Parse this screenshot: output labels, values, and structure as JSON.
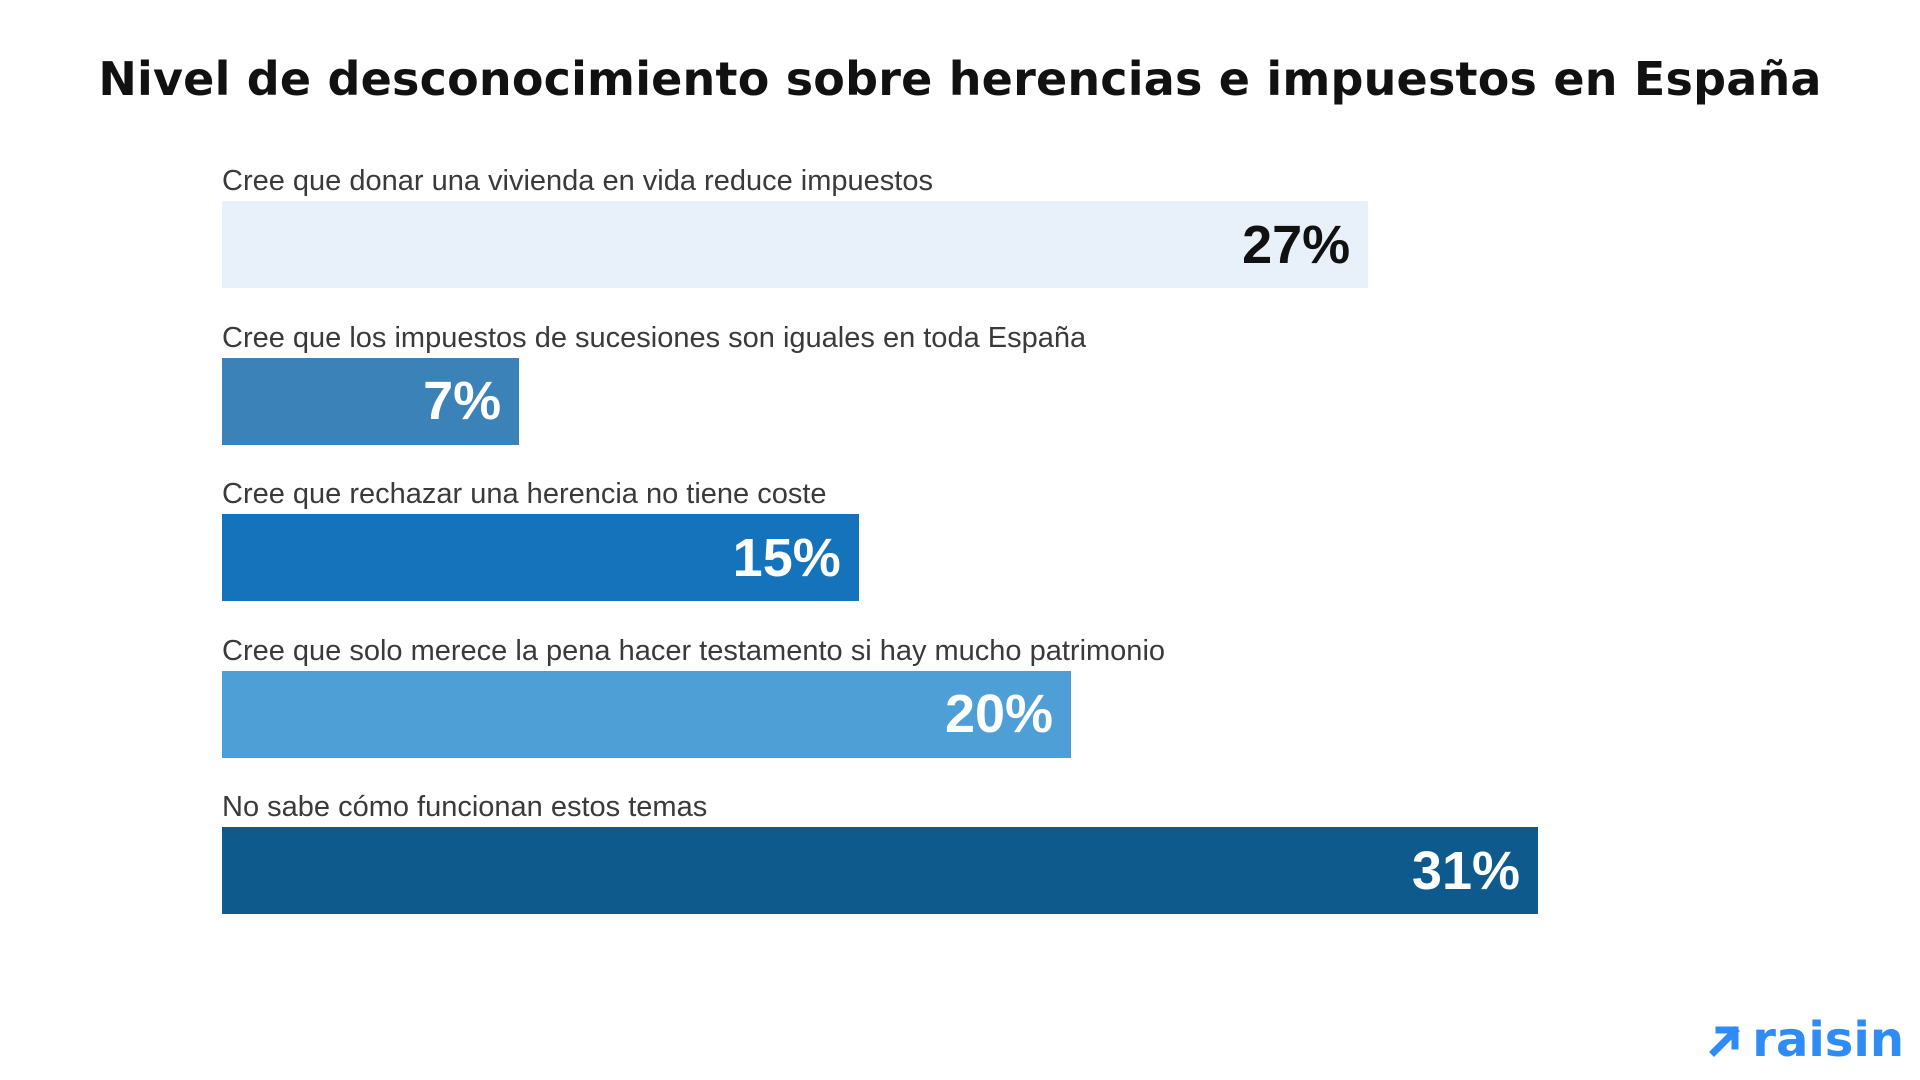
{
  "chart_data": {
    "type": "bar",
    "orientation": "horizontal",
    "title": "Nivel de desconocimiento sobre herencias e impuestos en España",
    "categories": [
      "Cree que donar una vivienda en vida reduce impuestos",
      "Cree que los impuestos de sucesiones son iguales en toda España",
      "Cree que rechazar una herencia no tiene coste",
      "Cree que solo merece la pena hacer testamento si hay mucho patrimonio",
      "No sabe cómo funcionan estos temas"
    ],
    "values": [
      27,
      7,
      15,
      20,
      31
    ],
    "value_labels": [
      "27%",
      "7%",
      "15%",
      "20%",
      "31%"
    ],
    "colors": [
      "#e8f0fa",
      "#3a82b8",
      "#1473bb",
      "#4d9fd6",
      "#0e5a8c"
    ],
    "label_colors": [
      "#111111",
      "#ffffff",
      "#ffffff",
      "#ffffff",
      "#ffffff"
    ],
    "grid": false,
    "axes_visible": false
  },
  "brand": {
    "name": "raisin",
    "color": "#2f8cf5",
    "icon": "arrow-up-right-icon"
  }
}
